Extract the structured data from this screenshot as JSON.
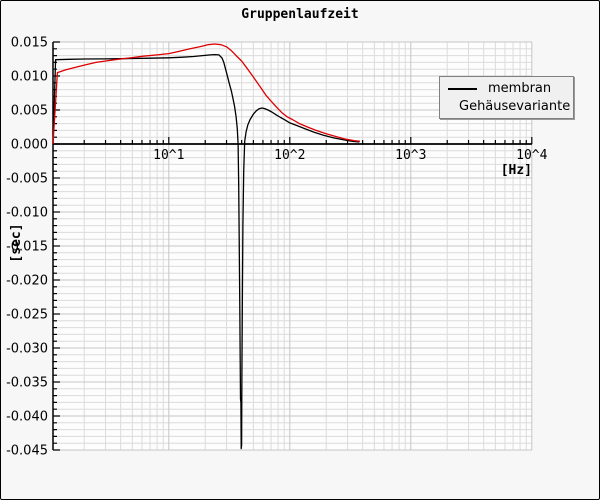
{
  "window": {
    "title": "Gruppenlaufzeit"
  },
  "chart_data": {
    "type": "line",
    "title": "Gruppenlaufzeit",
    "grid": true,
    "legend_position": "top-right",
    "x_axis": {
      "scale": "log",
      "unit_label": "[Hz]",
      "min": 1.104,
      "max": 10000,
      "ticks": [
        {
          "value": 10,
          "label": "10^1"
        },
        {
          "value": 100,
          "label": "10^2"
        },
        {
          "value": 1000,
          "label": "10^3"
        },
        {
          "value": 10000,
          "label": "10^4"
        }
      ]
    },
    "y_axis": {
      "scale": "linear",
      "unit_label": "[sec]",
      "min": -0.045,
      "max": 0.015,
      "major_step": 0.005,
      "minor_step": 0.001,
      "ticks": [
        {
          "value": 0.015,
          "label": "0.015"
        },
        {
          "value": 0.01,
          "label": "0.010"
        },
        {
          "value": 0.005,
          "label": "0.005"
        },
        {
          "value": 0.0,
          "label": "0.000"
        },
        {
          "value": -0.005,
          "label": "-0.005"
        },
        {
          "value": -0.01,
          "label": "-0.010"
        },
        {
          "value": -0.015,
          "label": "-0.015"
        },
        {
          "value": -0.02,
          "label": "-0.020"
        },
        {
          "value": -0.025,
          "label": "-0.025"
        },
        {
          "value": -0.03,
          "label": "-0.030"
        },
        {
          "value": -0.035,
          "label": "-0.035"
        },
        {
          "value": -0.04,
          "label": "-0.040"
        },
        {
          "value": -0.045,
          "label": "-0.045"
        }
      ]
    },
    "colors": {
      "grid_minor": "#dcdcdc",
      "grid_major": "#c6c6c6",
      "axis": "#000000",
      "plot_background": "#fdfdfd"
    },
    "series": [
      {
        "name": "membran",
        "color": "#000000",
        "points": [
          [
            1.104,
            0.0
          ],
          [
            1.16,
            0.0124
          ],
          [
            1.5,
            0.01245
          ],
          [
            2,
            0.0125
          ],
          [
            3,
            0.01252
          ],
          [
            4,
            0.01255
          ],
          [
            5,
            0.01258
          ],
          [
            7,
            0.01262
          ],
          [
            10,
            0.01268
          ],
          [
            13,
            0.01276
          ],
          [
            16,
            0.01287
          ],
          [
            19,
            0.013
          ],
          [
            22,
            0.0131
          ],
          [
            24,
            0.01315
          ],
          [
            26,
            0.0131
          ],
          [
            27.5,
            0.01265
          ],
          [
            28.5,
            0.012
          ],
          [
            30,
            0.0105
          ],
          [
            31.5,
            0.009
          ],
          [
            33,
            0.0077
          ],
          [
            34,
            0.0066
          ],
          [
            35,
            0.0055
          ],
          [
            36,
            0.004
          ],
          [
            36.8,
            0.0022
          ],
          [
            37.4,
            0.0
          ],
          [
            37.8,
            -0.006
          ],
          [
            38.2,
            -0.014
          ],
          [
            38.6,
            -0.024
          ],
          [
            38.9,
            -0.032
          ],
          [
            39.1,
            -0.0375
          ],
          [
            39.45,
            -0.038
          ],
          [
            39.65,
            -0.0448
          ],
          [
            39.95,
            -0.0443
          ],
          [
            40.2,
            -0.034
          ],
          [
            40.6,
            -0.022
          ],
          [
            41.0,
            -0.012
          ],
          [
            41.6,
            -0.004
          ],
          [
            42.4,
            0.0004
          ],
          [
            43.5,
            0.0018
          ],
          [
            45,
            0.0028
          ],
          [
            47,
            0.0036
          ],
          [
            50,
            0.0044
          ],
          [
            53,
            0.0049
          ],
          [
            56,
            0.0052
          ],
          [
            59,
            0.0053
          ],
          [
            62,
            0.0052
          ],
          [
            66,
            0.005
          ],
          [
            71,
            0.0047
          ],
          [
            77,
            0.0043
          ],
          [
            84,
            0.0039
          ],
          [
            92,
            0.0035
          ],
          [
            100,
            0.0031
          ],
          [
            115,
            0.0027
          ],
          [
            135,
            0.0022
          ],
          [
            160,
            0.0017
          ],
          [
            190,
            0.0013
          ],
          [
            230,
            0.0009
          ],
          [
            280,
            0.0006
          ],
          [
            330,
            0.0004
          ],
          [
            375,
            0.0003
          ]
        ]
      },
      {
        "name": "Gehäusevariante",
        "color": "#dd0000",
        "points": [
          [
            1.104,
            0.0
          ],
          [
            1.2,
            0.0105
          ],
          [
            1.4,
            0.0109
          ],
          [
            1.7,
            0.0113
          ],
          [
            2,
            0.0116
          ],
          [
            2.5,
            0.012
          ],
          [
            3,
            0.0122
          ],
          [
            4,
            0.0125
          ],
          [
            5,
            0.0127
          ],
          [
            6,
            0.0129
          ],
          [
            8,
            0.0131
          ],
          [
            10,
            0.0133
          ],
          [
            12,
            0.0136
          ],
          [
            15,
            0.014
          ],
          [
            18,
            0.0143
          ],
          [
            21,
            0.0146
          ],
          [
            24,
            0.0147
          ],
          [
            27,
            0.0146
          ],
          [
            30,
            0.0143
          ],
          [
            33,
            0.0137
          ],
          [
            36,
            0.013
          ],
          [
            40,
            0.0122
          ],
          [
            44,
            0.0112
          ],
          [
            48,
            0.0103
          ],
          [
            53,
            0.0092
          ],
          [
            58,
            0.0082
          ],
          [
            64,
            0.0071
          ],
          [
            70,
            0.0063
          ],
          [
            78,
            0.0054
          ],
          [
            86,
            0.0046
          ],
          [
            95,
            0.004
          ],
          [
            105,
            0.0036
          ],
          [
            120,
            0.003
          ],
          [
            140,
            0.0025
          ],
          [
            165,
            0.002
          ],
          [
            200,
            0.0015
          ],
          [
            240,
            0.0011
          ],
          [
            290,
            0.0007
          ],
          [
            340,
            0.0005
          ],
          [
            380,
            0.0004
          ]
        ]
      }
    ]
  }
}
